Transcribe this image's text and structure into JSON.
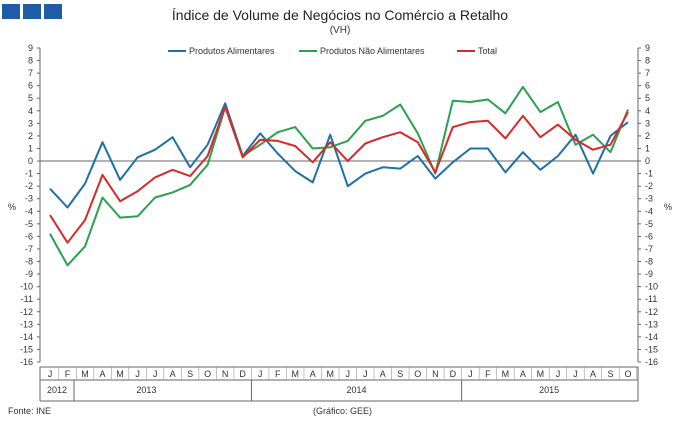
{
  "header": {
    "title": "Índice de Volume de Negócios no Comércio a Retalho",
    "subtitle": "(VH)"
  },
  "footer": {
    "source": "Fonte: INE",
    "credit": "(Gráfico: GEE)"
  },
  "chart_data": {
    "type": "line",
    "title": "Índice de Volume de Negócios no Comércio a Retalho",
    "subtitle": "(VH)",
    "ylabel_left": "%",
    "ylabel_right": "%",
    "ylim": [
      -16,
      9
    ],
    "yticks": [
      9,
      8,
      7,
      6,
      5,
      4,
      3,
      2,
      1,
      0,
      -1,
      -2,
      -3,
      -4,
      -5,
      -6,
      -7,
      -8,
      -9,
      -10,
      -11,
      -12,
      -13,
      -14,
      -15,
      -16
    ],
    "grid": false,
    "legend_position": "top",
    "x": [
      "J",
      "F",
      "M",
      "A",
      "M",
      "J",
      "J",
      "A",
      "S",
      "O",
      "N",
      "D",
      "J",
      "F",
      "M",
      "A",
      "M",
      "J",
      "J",
      "A",
      "S",
      "O",
      "N",
      "D",
      "J",
      "F",
      "M",
      "A",
      "M",
      "J",
      "J",
      "A",
      "S",
      "O"
    ],
    "year_groups": [
      {
        "label": "2012",
        "count": 0
      },
      {
        "label": "2013",
        "count": 12
      },
      {
        "label": "2014",
        "count": 12
      },
      {
        "label": "2015",
        "count": 10
      }
    ],
    "series": [
      {
        "name": "Produtos Alimentares",
        "color": "#1f6fa8",
        "values": [
          -2.2,
          -3.7,
          -1.8,
          1.5,
          -1.5,
          0.3,
          0.9,
          1.9,
          -0.5,
          1.3,
          4.6,
          0.4,
          2.2,
          0.6,
          -0.8,
          -1.7,
          2.1,
          -2.0,
          -1.0,
          -0.5,
          -0.6,
          0.4,
          -1.4,
          -0.1,
          1.0,
          1.0,
          -0.9,
          0.7,
          -0.7,
          0.4,
          2.1,
          -1.0,
          2.0,
          3.1
        ]
      },
      {
        "name": "Produtos Não Alimentares",
        "color": "#2aa14d",
        "values": [
          -5.8,
          -8.3,
          -6.8,
          -2.9,
          -4.5,
          -4.4,
          -2.9,
          -2.5,
          -1.9,
          -0.3,
          4.3,
          0.4,
          1.3,
          2.3,
          2.7,
          1.0,
          1.1,
          1.6,
          3.2,
          3.6,
          4.5,
          2.2,
          -1.0,
          4.8,
          4.7,
          4.9,
          3.8,
          5.9,
          3.9,
          4.7,
          1.3,
          2.1,
          0.7,
          4.1
        ]
      },
      {
        "name": "Total",
        "color": "#d62a2a",
        "values": [
          -4.3,
          -6.5,
          -4.7,
          -1.1,
          -3.2,
          -2.4,
          -1.3,
          -0.7,
          -1.2,
          0.4,
          4.3,
          0.3,
          1.7,
          1.6,
          1.2,
          -0.1,
          1.5,
          0.0,
          1.4,
          1.9,
          2.3,
          1.5,
          -0.9,
          2.7,
          3.1,
          3.2,
          1.8,
          3.6,
          1.9,
          2.9,
          1.7,
          0.9,
          1.3,
          3.9
        ]
      }
    ]
  }
}
